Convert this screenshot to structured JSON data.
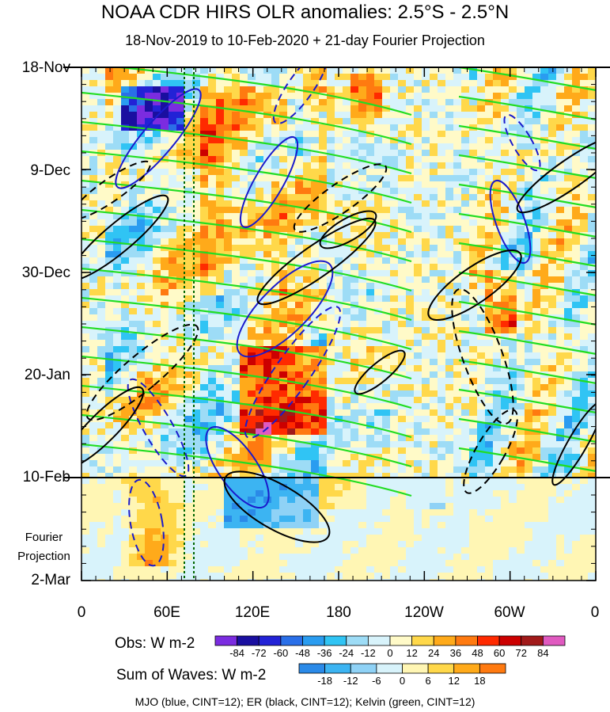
{
  "chart_data": {
    "type": "heatmap",
    "title": "NOAA CDR HIRS OLR anomalies: 2.5°S - 2.5°N",
    "subtitle": "18-Nov-2019 to 10-Feb-2020 + 21-day Fourier Projection",
    "y_ticks": [
      "18-Nov",
      "9-Dec",
      "30-Dec",
      "20-Jan",
      "10-Feb",
      "2-Mar"
    ],
    "x_ticks": [
      "0",
      "60E",
      "120E",
      "180",
      "120W",
      "60W",
      "0"
    ],
    "x_range": [
      "0",
      "360"
    ],
    "projection_label": [
      "Fourier",
      "Projection"
    ],
    "obs_colorbar": {
      "title": "Obs: W m-2",
      "ticks": [
        "-84",
        "-72",
        "-60",
        "-48",
        "-36",
        "-24",
        "-12",
        "0",
        "12",
        "24",
        "36",
        "48",
        "60",
        "72",
        "84"
      ],
      "colors": [
        "#7b2ce0",
        "#1a0fa0",
        "#2222d6",
        "#2a6fe8",
        "#2a9cf0",
        "#30c4f4",
        "#9ddcf6",
        "#d8f3fb",
        "#fffac8",
        "#ffd84a",
        "#ffaa1a",
        "#ff7a10",
        "#ff2a00",
        "#cc0000",
        "#a11a1a",
        "#e05ac0"
      ]
    },
    "waves_colorbar": {
      "title": "Sum of Waves: W m-2",
      "ticks": [
        "-18",
        "-12",
        "-6",
        "0",
        "6",
        "12",
        "18"
      ],
      "colors": [
        "#2a8ae8",
        "#3cb4f2",
        "#8fd2f6",
        "#d8f3fb",
        "#fff6b4",
        "#ffd84a",
        "#ffaa1a",
        "#ff7a10"
      ]
    },
    "footer": "MJO (blue, CINT=12); ER (black, CINT=12); Kelvin (green, CINT=12)",
    "series": [
      {
        "name": "MJO (blue, CINT=12)",
        "color": "#1a1acc"
      },
      {
        "name": "ER (black, CINT=12)",
        "color": "#000000"
      },
      {
        "name": "Kelvin (green, CINT=12)",
        "color": "#22dd22"
      }
    ]
  }
}
